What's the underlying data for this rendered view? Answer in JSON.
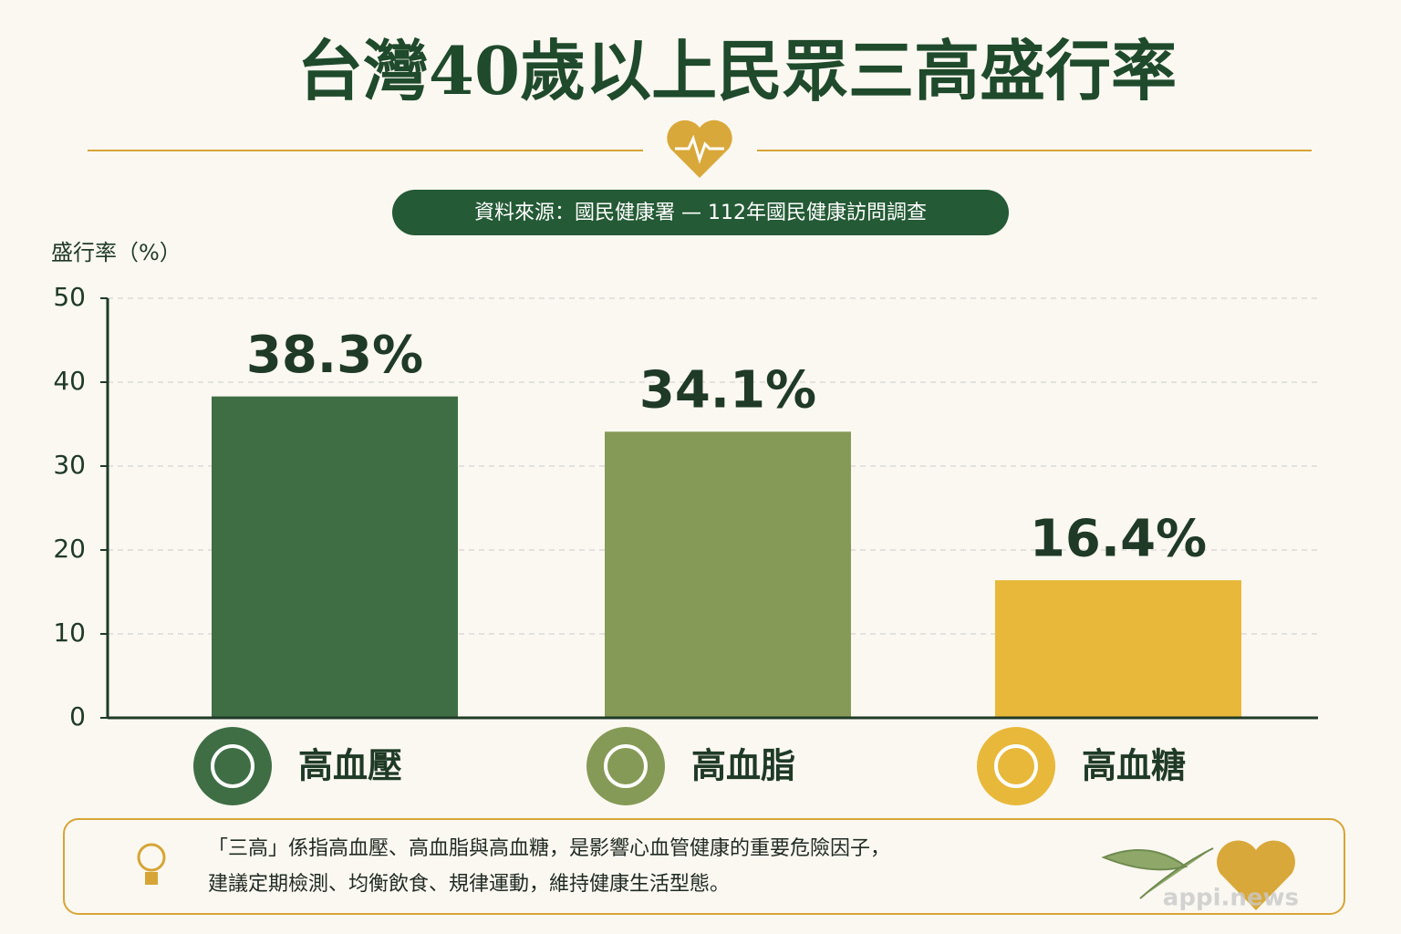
{
  "chart_data": {
    "type": "bar",
    "title": "台灣40歲以上民眾三高盛行率",
    "subtitle": "資料來源：國民健康署 — 112年國民健康訪問調查",
    "y_label": "盛行率（%）",
    "categories": [
      "高血壓",
      "高血脂",
      "高血糖"
    ],
    "values": [
      38.3,
      34.1,
      16.4
    ],
    "value_labels": [
      "38.3%",
      "34.1%",
      "16.4%"
    ],
    "colors": [
      "#3f6e45",
      "#869a57",
      "#e8b83a"
    ],
    "ylim": [
      0,
      50
    ],
    "yticks": [
      0,
      10,
      20,
      30,
      40,
      50
    ],
    "grid": true,
    "note": [
      "「三高」係指高血壓、高血脂與高血糖，是影響心血管健康的重要危險因子，",
      "建議定期檢測、均衡飲食、規律運動，維持健康生活型態。"
    ],
    "watermark": "appi.news"
  }
}
